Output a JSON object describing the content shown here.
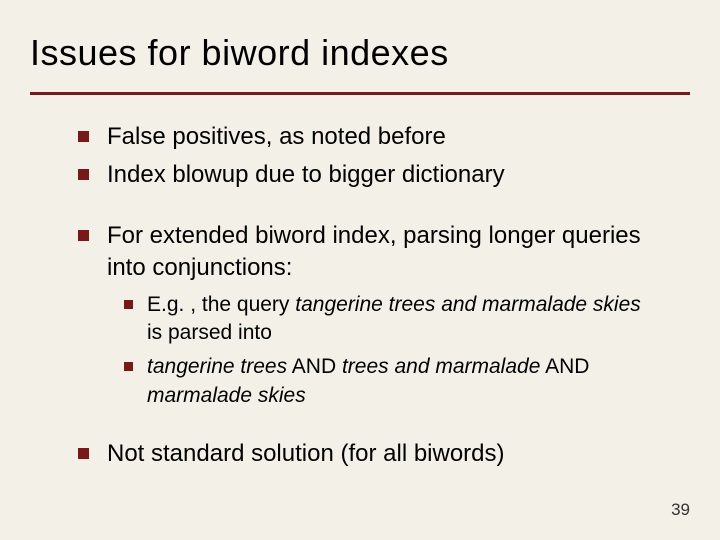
{
  "title": "Issues for biword indexes",
  "bullets": {
    "b1": "False positives, as noted before",
    "b2": "Index blowup due to bigger dictionary",
    "b3": "For extended biword index, parsing longer queries into conjunctions:",
    "b4": "Not standard solution (for all biwords)"
  },
  "sub": {
    "s1_pre": "E.g. , the query ",
    "s1_it": "tangerine trees and marmalade skies",
    "s1_post": " is parsed into",
    "s2_a": "tangerine trees",
    "s2_b": " AND ",
    "s2_c": "trees and marmalade",
    "s2_d": " AND ",
    "s2_e": "marmalade skies"
  },
  "page_number": "39",
  "colors": {
    "accent": "#7a1818",
    "background": "#f3f0e8",
    "text": "#000000"
  },
  "fontsizes": {
    "title": 36,
    "bullet": 24,
    "sub": 21,
    "pagenum": 17
  }
}
